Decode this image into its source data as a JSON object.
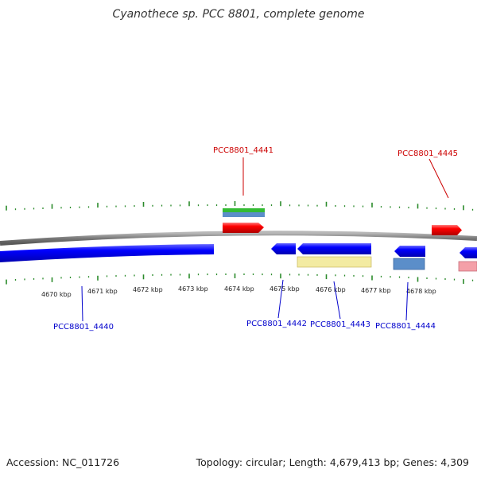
{
  "title": "Cyanothece sp. PCC 8801, complete genome",
  "footer": {
    "accession": "Accession: NC_011726",
    "summary": "Topology: circular; Length: 4,679,413 bp; Genes: 4,309"
  },
  "colors": {
    "backbone": "#808080",
    "tick": "#2a8a2a",
    "forward_label": "#cc0000",
    "reverse_label": "#0000cc"
  },
  "axis_ticks": [
    {
      "label": "4670 kbp"
    },
    {
      "label": "4671 kbp"
    },
    {
      "label": "4672 kbp"
    },
    {
      "label": "4673 kbp"
    },
    {
      "label": "4674 kbp"
    },
    {
      "label": "4675 kbp"
    },
    {
      "label": "4676 kbp"
    },
    {
      "label": "4677 kbp"
    },
    {
      "label": "4678 kbp"
    }
  ],
  "gene_labels": [
    {
      "text": "PCC8801_4441",
      "strand": "forward"
    },
    {
      "text": "PCC8801_4445",
      "strand": "forward"
    },
    {
      "text": "PCC8801_4440",
      "strand": "reverse"
    },
    {
      "text": "PCC8801_4442",
      "strand": "reverse"
    },
    {
      "text": "PCC8801_4443",
      "strand": "reverse"
    },
    {
      "text": "PCC8801_4444",
      "strand": "reverse"
    }
  ],
  "features": [
    {
      "type": "gene",
      "strand": "forward",
      "color": "#ff0000"
    },
    {
      "type": "gene",
      "strand": "forward",
      "color": "#ff0000"
    },
    {
      "type": "gene",
      "strand": "reverse",
      "color": "#0000ff"
    },
    {
      "type": "gene",
      "strand": "reverse",
      "color": "#0000ff"
    },
    {
      "type": "gene",
      "strand": "reverse",
      "color": "#0000ff"
    },
    {
      "type": "gene",
      "strand": "reverse",
      "color": "#0000ff"
    },
    {
      "type": "gene",
      "strand": "reverse",
      "color": "#0000ff"
    },
    {
      "type": "feature",
      "strand": "forward",
      "color": "#33bb33"
    },
    {
      "type": "feature",
      "strand": "forward",
      "color": "#5b8ec9"
    },
    {
      "type": "feature",
      "strand": "reverse",
      "color": "#f3eba2"
    },
    {
      "type": "feature",
      "strand": "reverse",
      "color": "#5b8ec9"
    },
    {
      "type": "feature",
      "strand": "reverse",
      "color": "#f4a0a8"
    }
  ]
}
